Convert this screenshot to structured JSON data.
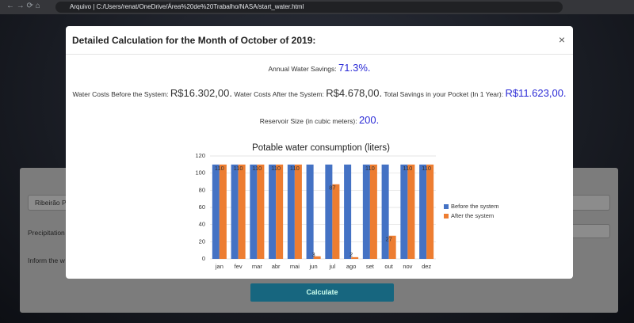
{
  "browser": {
    "protocol_label": "Arquivo",
    "url": "C:/Users/renat/OneDrive/Área%20de%20Trabalho/NASA/start_water.html"
  },
  "form": {
    "city": "Ribeirão P",
    "precipitation": "Precipitation",
    "inform": "Inform the w",
    "button": "Calculate"
  },
  "modal": {
    "title": "Detailed Calculation for the Month of October of 2019:",
    "close": "×",
    "annual_label": "Annual Water Savings:",
    "annual_value": "71.3%.",
    "before_label": "Water Costs Before the System:",
    "before_value": "R$16.302,00.",
    "after_label": "Water Costs After the System:",
    "after_value": "R$4.678,00.",
    "total_label": "Total Savings in your Pocket (In 1 Year):",
    "total_value": "R$11.623,00.",
    "reservoir_label": "Reservoir Size (in cubic meters):",
    "reservoir_value": "200."
  },
  "chart_data": {
    "type": "bar",
    "title": "Potable water consumption (liters)",
    "categories": [
      "jan",
      "fev",
      "mar",
      "abr",
      "mai",
      "jun",
      "jul",
      "ago",
      "set",
      "out",
      "nov",
      "dez"
    ],
    "series": [
      {
        "name": "Before the system",
        "color": "#4472c4",
        "values": [
          110,
          110,
          110,
          110,
          110,
          110,
          110,
          110,
          110,
          110,
          110,
          110
        ]
      },
      {
        "name": "After the system",
        "color": "#ed7d31",
        "values": [
          110,
          110,
          110,
          110,
          110,
          3,
          87,
          2,
          110,
          27,
          110,
          110
        ],
        "data_labels": true
      }
    ],
    "ylim": [
      0,
      120
    ],
    "yticks": [
      0,
      20,
      40,
      60,
      80,
      100,
      120
    ],
    "grid": true,
    "legend": "right"
  }
}
